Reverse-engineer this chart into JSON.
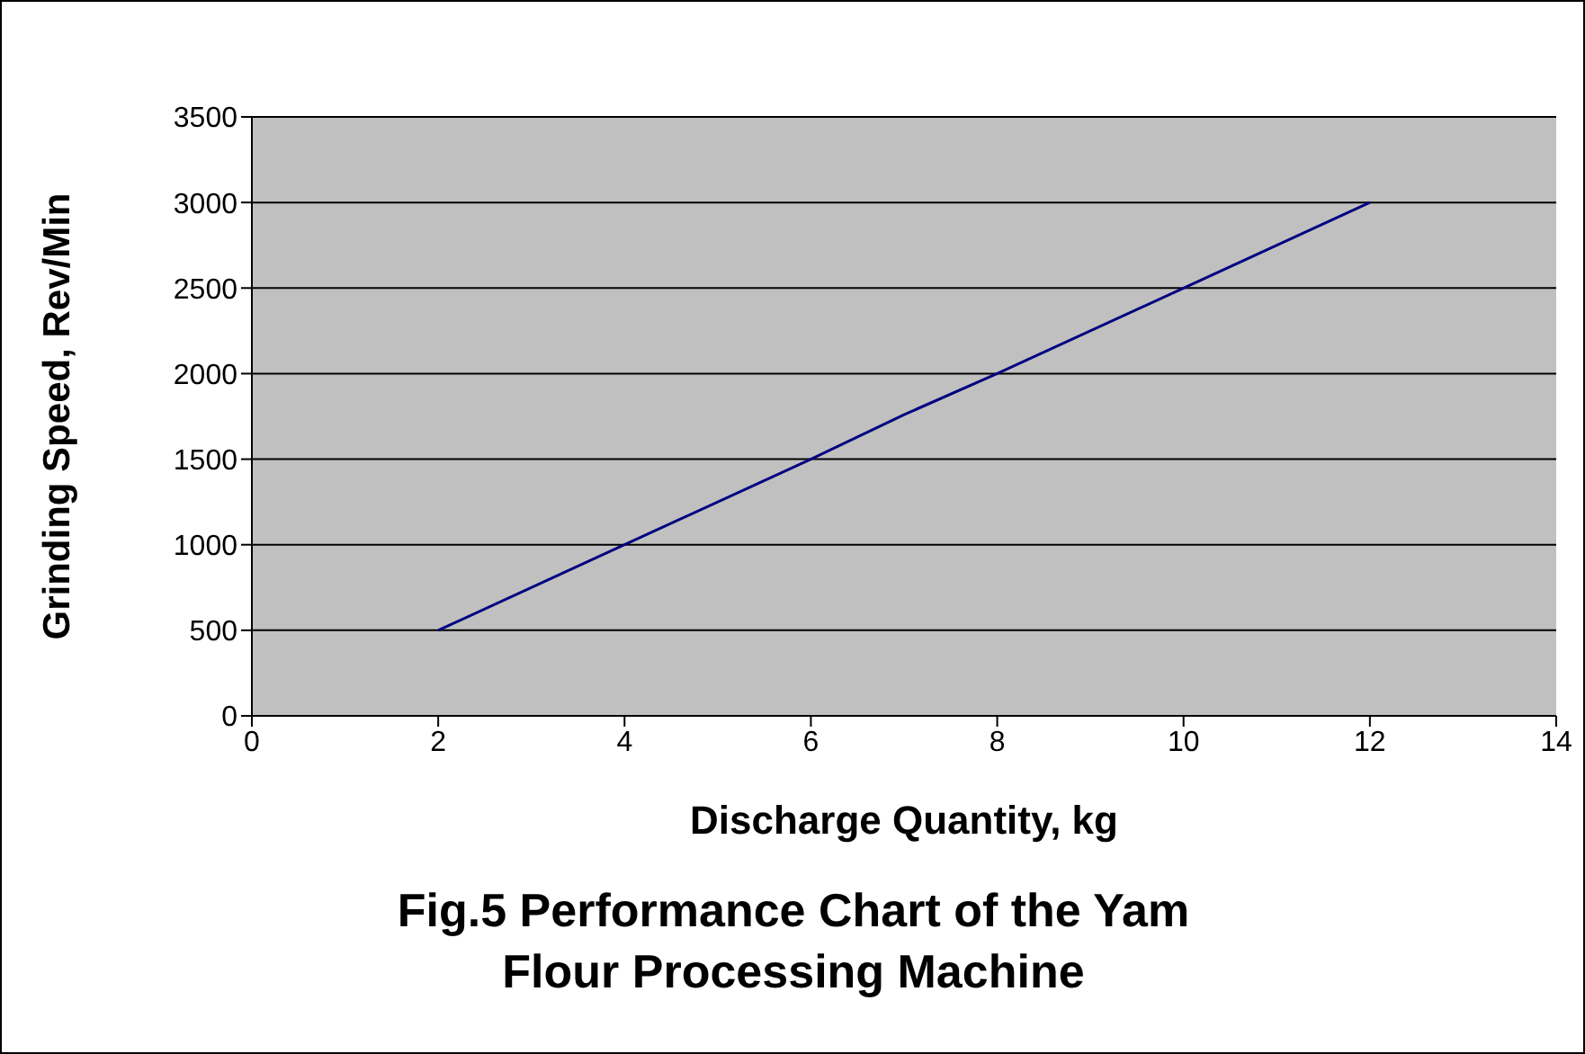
{
  "chart_data": {
    "type": "line",
    "title": "Fig.5 Performance Chart of the Yam Flour Processing Machine",
    "xlabel": "Discharge Quantity, kg",
    "ylabel": "Grinding Speed, Rev/Min",
    "x": [
      2,
      4,
      6,
      7,
      8,
      10,
      12
    ],
    "series": [
      {
        "color": "#000080",
        "values": [
          500,
          1000,
          1500,
          1760,
          2000,
          2500,
          3000
        ]
      }
    ],
    "xlim": [
      0,
      14
    ],
    "xticks": [
      0,
      2,
      4,
      6,
      8,
      10,
      12,
      14
    ],
    "ylim": [
      0,
      3500
    ],
    "yticks": [
      0,
      500,
      1000,
      1500,
      2000,
      2500,
      3000,
      3500
    ],
    "grid": "y",
    "legend": false,
    "marker": "none",
    "line_style": "solid"
  }
}
